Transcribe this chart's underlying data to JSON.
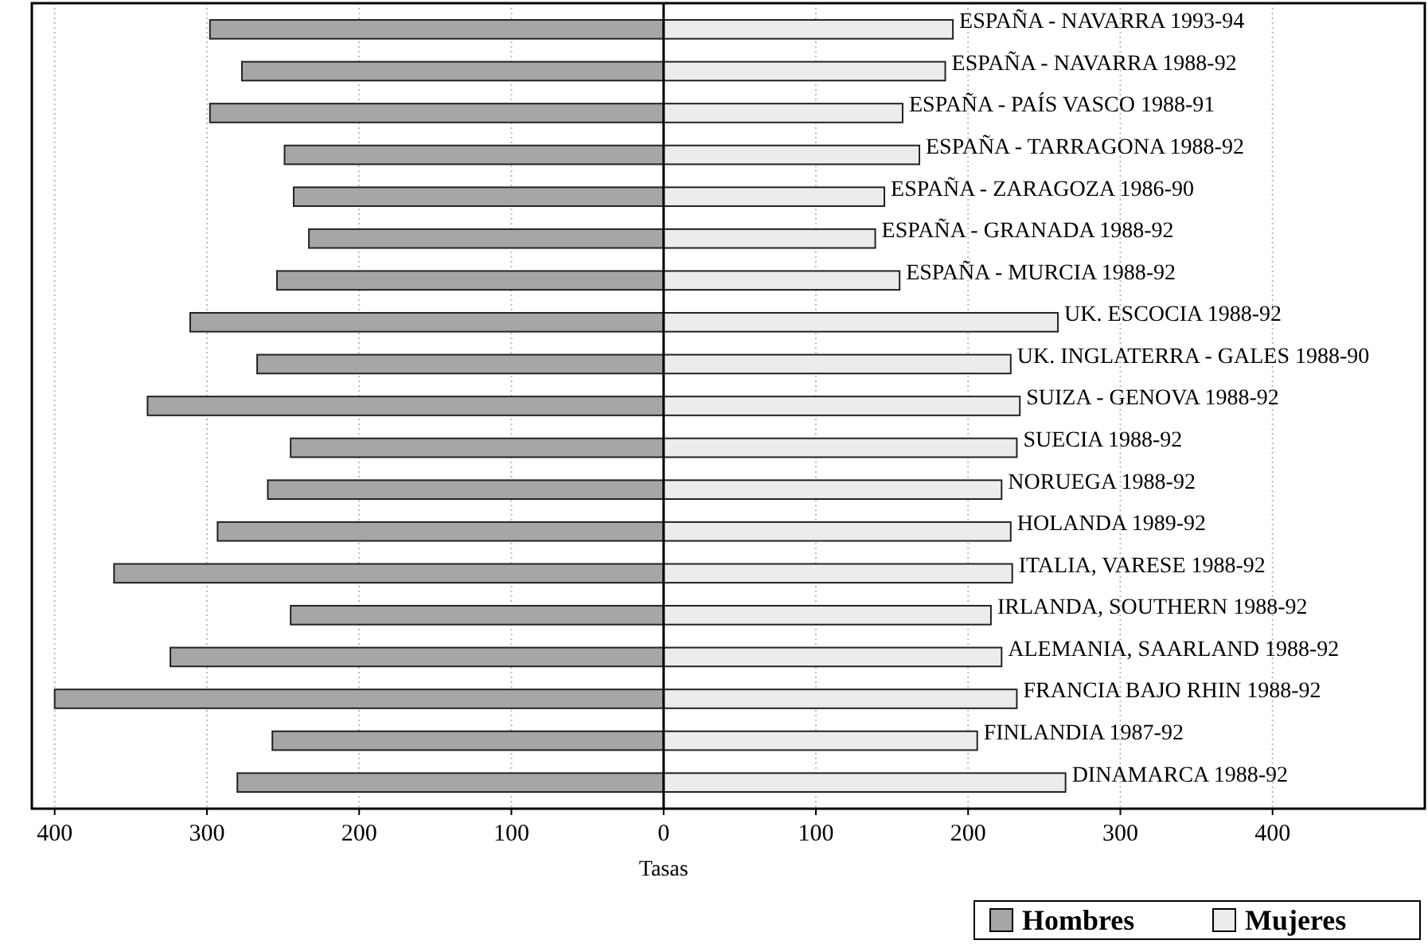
{
  "chart_data": {
    "type": "bar",
    "orientation": "horizontal",
    "stacked": true,
    "xlabel": "Tasas",
    "categories": [
      "ESPAÑA - NAVARRA 1993-94",
      "ESPAÑA - NAVARRA 1988-92",
      "ESPAÑA - PAÍS VASCO 1988-91",
      "ESPAÑA - TARRAGONA 1988-92",
      "ESPAÑA - ZARAGOZA 1986-90",
      "ESPAÑA - GRANADA 1988-92",
      "ESPAÑA - MURCIA 1988-92",
      "UK. ESCOCIA 1988-92",
      "UK. INGLATERRA - GALES 1988-90",
      "SUIZA - GENOVA 1988-92",
      "SUECIA 1988-92",
      "NORUEGA 1988-92",
      "HOLANDA 1989-92",
      "ITALIA, VARESE 1988-92",
      "IRLANDA, SOUTHERN 1988-92",
      "ALEMANIA, SAARLAND 1988-92",
      "FRANCIA  BAJO RHIN 1988-92",
      "FINLANDIA 1987-92",
      "DINAMARCA 1988-92"
    ],
    "series": [
      {
        "name": "Hombres",
        "color": "#a6a6a6",
        "values": [
          -298,
          -277,
          -298,
          -249,
          -243,
          -233,
          -254,
          -311,
          -267,
          -339,
          -245,
          -260,
          -293,
          -361,
          -245,
          -324,
          -400,
          -257,
          -280
        ]
      },
      {
        "name": "Mujeres",
        "color": "#ececec",
        "values": [
          190,
          185,
          157,
          168,
          145,
          139,
          155,
          259,
          228,
          234,
          232,
          222,
          228,
          229,
          215,
          222,
          232,
          206,
          264
        ]
      }
    ],
    "xlim": [
      -415,
      500
    ],
    "xticks": [
      {
        "value": -400,
        "label": "400"
      },
      {
        "value": -300,
        "label": "300"
      },
      {
        "value": -200,
        "label": "200"
      },
      {
        "value": -100,
        "label": "100"
      },
      0,
      100,
      200,
      300,
      400
    ],
    "grid": "x",
    "legend": "bottom right"
  }
}
